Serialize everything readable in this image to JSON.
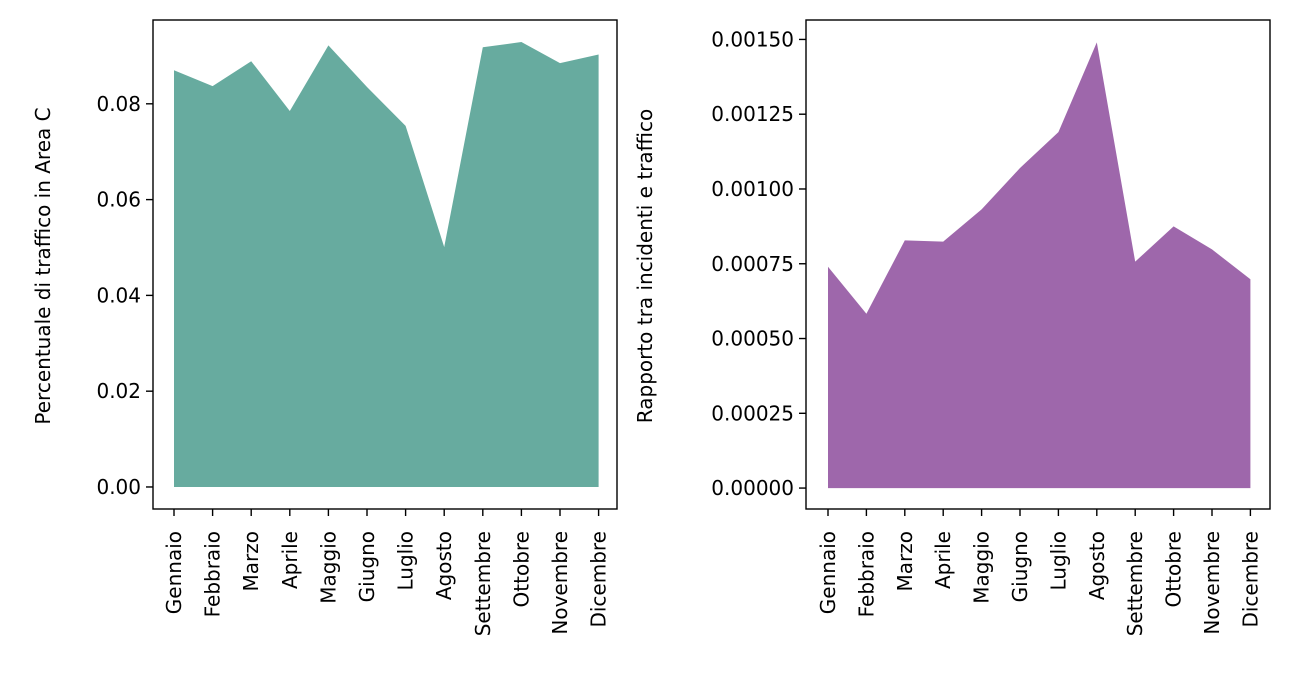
{
  "chart_data": [
    {
      "type": "area",
      "title": "",
      "xlabel": "",
      "ylabel": "Percentuale di traffico in Area C",
      "categories": [
        "Gennaio",
        "Febbraio",
        "Marzo",
        "Aprile",
        "Maggio",
        "Giugno",
        "Luglio",
        "Agosto",
        "Settembre",
        "Ottobre",
        "Novembre",
        "Dicembre"
      ],
      "values": [
        0.087,
        0.0837,
        0.0889,
        0.0785,
        0.0922,
        0.0835,
        0.0754,
        0.0501,
        0.0918,
        0.0929,
        0.0885,
        0.0903
      ],
      "ylim": [
        -0.0046,
        0.0975
      ],
      "yticks": [
        0,
        0.02,
        0.04,
        0.06,
        0.08
      ],
      "ytick_labels": [
        "0.00",
        "0.02",
        "0.04",
        "0.06",
        "0.08"
      ],
      "color": "#67ab9f",
      "grid": false,
      "legend": "none"
    },
    {
      "type": "area",
      "title": "",
      "xlabel": "",
      "ylabel": "Rapporto tra incidenti e traffico",
      "categories": [
        "Gennaio",
        "Febbraio",
        "Marzo",
        "Aprile",
        "Maggio",
        "Giugno",
        "Luglio",
        "Agosto",
        "Settembre",
        "Ottobre",
        "Novembre",
        "Dicembre"
      ],
      "values": [
        0.00074,
        0.000583,
        0.000828,
        0.000824,
        0.000932,
        0.00107,
        0.00119,
        0.00149,
        0.000757,
        0.000875,
        0.000798,
        0.000698
      ],
      "ylim": [
        -7e-05,
        0.001565
      ],
      "yticks": [
        0,
        0.00025,
        0.0005,
        0.00075,
        0.001,
        0.00125,
        0.0015
      ],
      "ytick_labels": [
        "0.00000",
        "0.00025",
        "0.00050",
        "0.00075",
        "0.00100",
        "0.00125",
        "0.00150"
      ],
      "color": "#9e67ab",
      "grid": false,
      "legend": "none"
    }
  ]
}
